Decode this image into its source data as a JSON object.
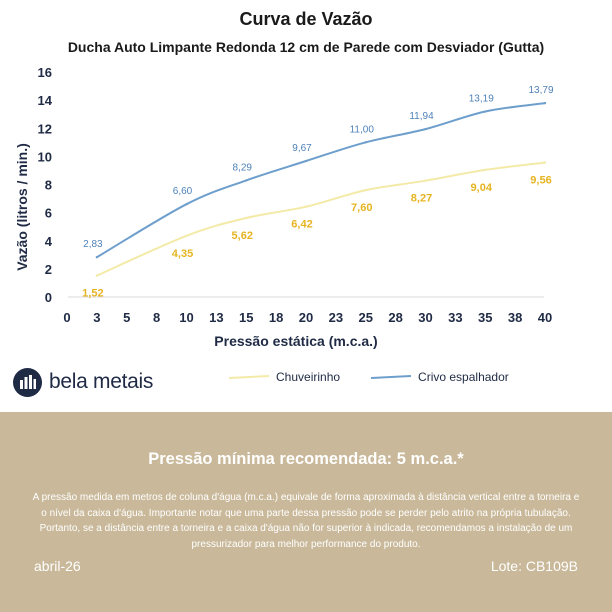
{
  "header": {
    "title": "Curva de Vazão",
    "subtitle": "Ducha Auto Limpante Redonda 12 cm de Parede com Desviador (Gutta)"
  },
  "brand": {
    "name": "bela metais"
  },
  "colors": {
    "crivo": "#6e9fcc",
    "chuveirinho": "#f4eaa8",
    "panel": "#c9b99a",
    "axis_text": "#1f2a44",
    "yellow_label": "#e6b422",
    "blue_label": "#4f82b8"
  },
  "chart_data": {
    "type": "line",
    "xlabel": "Pressão estática (m.c.a.)",
    "ylabel": "Vazão (litros / min.)",
    "x_ticks": [
      "0",
      "3",
      "5",
      "8",
      "10",
      "13",
      "15",
      "18",
      "20",
      "23",
      "25",
      "28",
      "30",
      "33",
      "35",
      "38",
      "40"
    ],
    "y_ticks": [
      "0",
      "2",
      "4",
      "6",
      "8",
      "10",
      "12",
      "14",
      "16"
    ],
    "xlim": [
      0,
      40
    ],
    "ylim": [
      0,
      16
    ],
    "grid": false,
    "legend_position": "bottom",
    "x": [
      2.5,
      10,
      15,
      20,
      25,
      30,
      35,
      40
    ],
    "series": [
      {
        "name": "Chuveirinho",
        "values": [
          1.52,
          4.35,
          5.62,
          6.42,
          7.6,
          8.27,
          9.04,
          9.56
        ],
        "labels": [
          "1,52",
          "4,35",
          "5,62",
          "6,42",
          "7,60",
          "8,27",
          "9,04",
          "9,56"
        ]
      },
      {
        "name": "Crivo espalhador",
        "values": [
          2.83,
          6.6,
          8.29,
          9.67,
          11.0,
          11.94,
          13.19,
          13.79
        ],
        "labels": [
          "2,83",
          "6,60",
          "8,29",
          "9,67",
          "11,00",
          "11,94",
          "13,19",
          "13,79"
        ]
      }
    ]
  },
  "footer": {
    "heading": "Pressão mínima recomendada: 5 m.c.a.*",
    "note": "A pressão medida em metros de coluna d'água (m.c.a.) equivale de forma aproximada à distância vertical entre a torneira e o nível da caixa d'água. Importante notar que uma parte dessa pressão pode se perder pelo atrito na própria tubulação. Portanto, se a distância entre a torneira e a caixa d'água não for superior à indicada, recomendamos a instalação de um pressurizador para melhor performance do produto.",
    "date": "abril-26",
    "lot": "Lote: CB109B"
  }
}
